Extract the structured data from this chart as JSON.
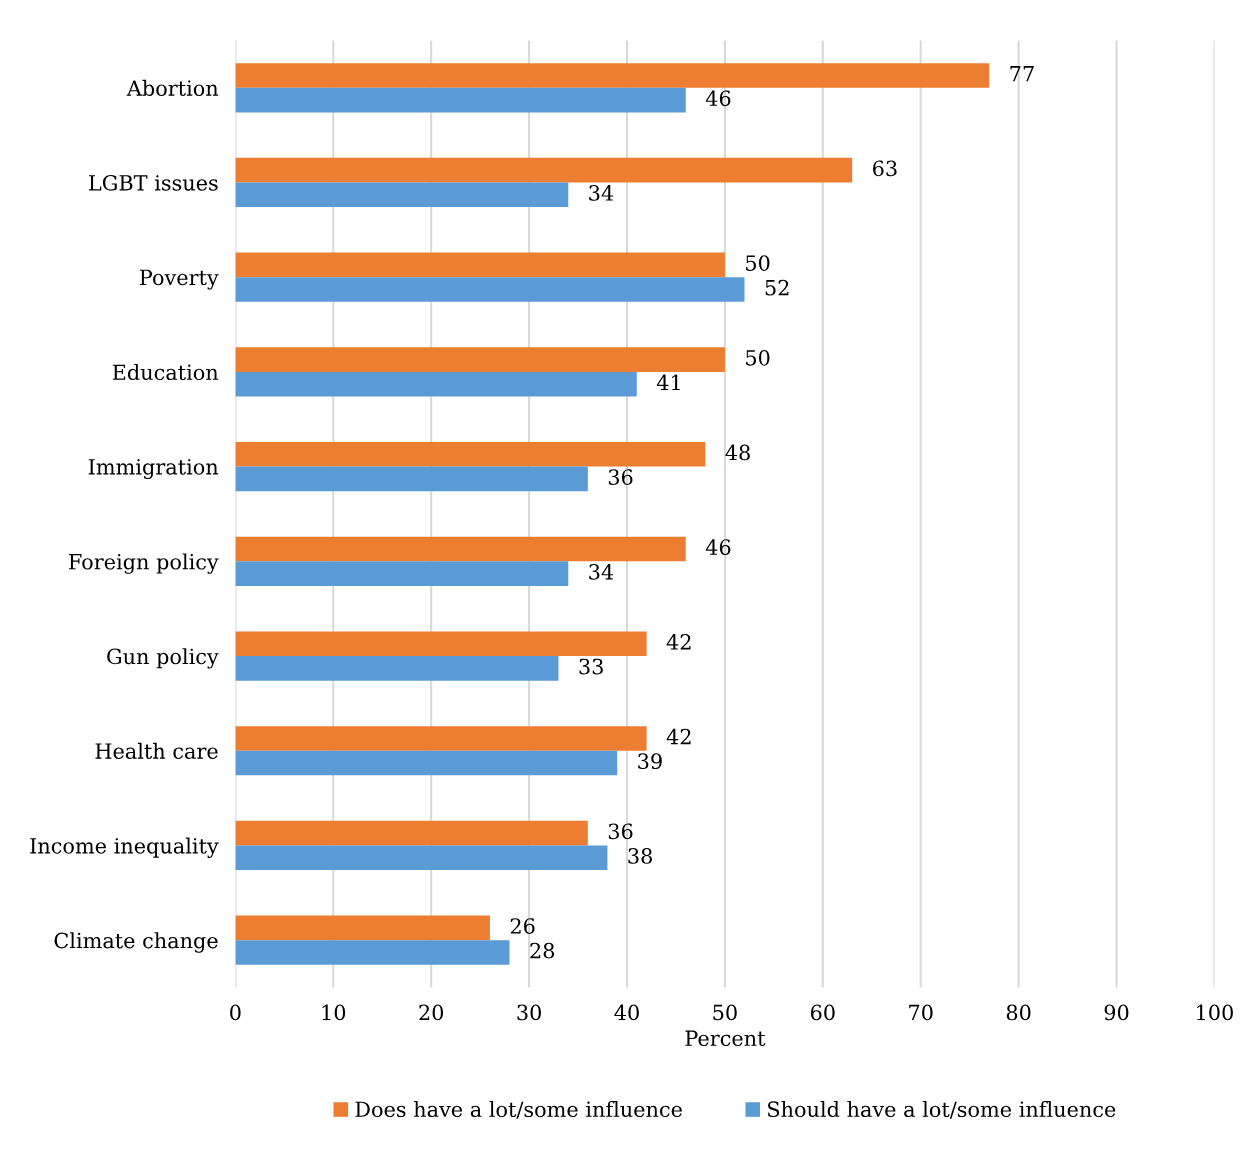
{
  "chart_data": {
    "type": "bar",
    "orientation": "horizontal",
    "xlabel": "Percent",
    "categories": [
      "Abortion",
      "LGBT issues",
      "Poverty",
      "Education",
      "Immigration",
      "Foreign policy",
      "Gun policy",
      "Health care",
      "Income inequality",
      "Climate change"
    ],
    "series": [
      {
        "name": "Does have a lot/some influence",
        "color": "#ed7d31",
        "values": [
          77,
          63,
          50,
          50,
          48,
          46,
          42,
          42,
          36,
          26
        ]
      },
      {
        "name": "Should have a lot/some influence",
        "color": "#5b9bd5",
        "values": [
          46,
          34,
          52,
          41,
          36,
          34,
          33,
          39,
          38,
          28
        ]
      }
    ],
    "xlim": [
      0,
      100
    ],
    "xticks": [
      0,
      10,
      20,
      30,
      40,
      50,
      60,
      70,
      80,
      90,
      100
    ],
    "grid": "x",
    "legend": "bottom",
    "data_labels": true
  }
}
